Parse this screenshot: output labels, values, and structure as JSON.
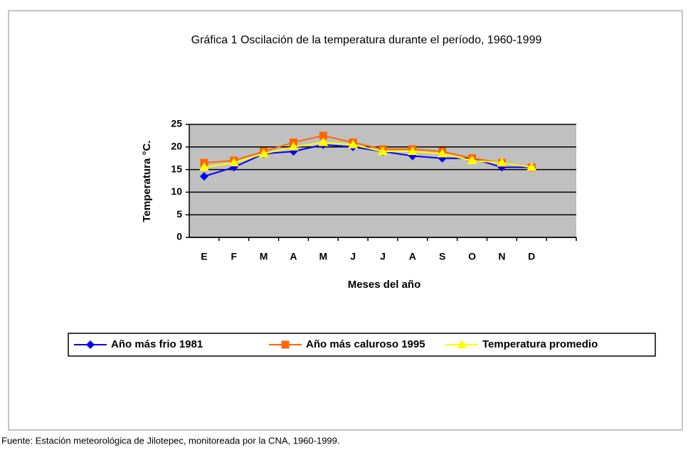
{
  "chart_data": {
    "type": "line",
    "title": "Gráfica 1 Oscilación de la temperatura durante el período, 1960-1999",
    "x_label": "Meses del año",
    "y_label": "Temperatura °C.",
    "categories": [
      "E",
      "F",
      "M",
      "A",
      "M",
      "J",
      "J",
      "A",
      "S",
      "O",
      "N",
      "D",
      null
    ],
    "series": [
      {
        "name": "Año más frio 1981",
        "color": "#0000ff",
        "marker": "diamond",
        "values": [
          13.5,
          15.5,
          18.5,
          19,
          20.5,
          20,
          19,
          18,
          17.5,
          17.5,
          15.5,
          15.5,
          null
        ]
      },
      {
        "name": "Año más caluroso 1995",
        "color": "#ff6600",
        "marker": "square",
        "values": [
          16.5,
          17,
          19,
          21,
          22.5,
          21,
          19.5,
          19.5,
          19,
          17.5,
          16.5,
          15.5,
          null
        ]
      },
      {
        "name": "Temperatura promedio",
        "color": "#ffff00",
        "marker": "triangle",
        "values": [
          15.5,
          16.5,
          18.5,
          20,
          21,
          20.5,
          19,
          19,
          18.5,
          17,
          16.5,
          15.5,
          null
        ]
      }
    ],
    "ylim": [
      0,
      25
    ],
    "yticks": [
      0,
      5,
      10,
      15,
      20,
      25
    ],
    "grid": true,
    "plot_background": "#c0c0c0",
    "legend": "bottom",
    "source": "Fuente: Estación meteorológica de Jilotepec, monitoreada por la CNA, 1960-1999."
  }
}
